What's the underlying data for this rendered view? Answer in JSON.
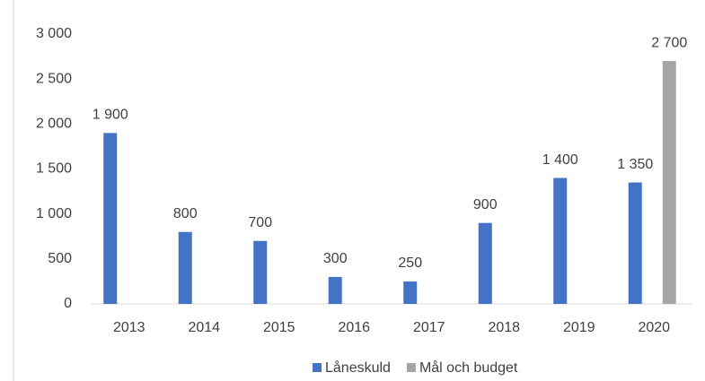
{
  "chart_data": {
    "type": "bar",
    "categories": [
      "2013",
      "2014",
      "2015",
      "2016",
      "2017",
      "2018",
      "2019",
      "2020"
    ],
    "series": [
      {
        "name": "Låneskuld",
        "color": "#4472c4",
        "values": [
          1900,
          800,
          700,
          300,
          250,
          900,
          1400,
          1350
        ],
        "value_labels": [
          "1 900",
          "800",
          "700",
          "300",
          "250",
          "900",
          "1 400",
          "1 350"
        ]
      },
      {
        "name": "Mål och budget",
        "color": "#a5a5a5",
        "values": [
          null,
          null,
          null,
          null,
          null,
          null,
          null,
          2700
        ],
        "value_labels": [
          null,
          null,
          null,
          null,
          null,
          null,
          null,
          "2 700"
        ]
      }
    ],
    "ylim": [
      0,
      3000
    ],
    "yticks": [
      0,
      500,
      {
        "value": 1000,
        "label": "1 000"
      },
      {
        "value": 1500,
        "label": "1 500"
      },
      {
        "value": 2000,
        "label": "2 000"
      },
      {
        "value": 2500,
        "label": "2 500"
      },
      {
        "value": 3000,
        "label": "3 000"
      }
    ],
    "grid": false,
    "legend": "bottom"
  }
}
